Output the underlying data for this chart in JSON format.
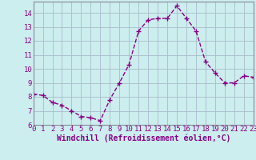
{
  "x": [
    0,
    1,
    2,
    3,
    4,
    5,
    6,
    7,
    8,
    9,
    10,
    11,
    12,
    13,
    14,
    15,
    16,
    17,
    18,
    19,
    20,
    21,
    22,
    23
  ],
  "y": [
    8.2,
    8.1,
    7.6,
    7.4,
    7.0,
    6.6,
    6.5,
    6.3,
    7.8,
    9.0,
    10.3,
    12.7,
    13.5,
    13.6,
    13.6,
    14.5,
    13.6,
    12.7,
    10.5,
    9.7,
    9.0,
    9.0,
    9.5,
    9.4
  ],
  "xlim": [
    0,
    23
  ],
  "ylim": [
    6,
    14.8
  ],
  "yticks": [
    6,
    7,
    8,
    9,
    10,
    11,
    12,
    13,
    14
  ],
  "xticks": [
    0,
    1,
    2,
    3,
    4,
    5,
    6,
    7,
    8,
    9,
    10,
    11,
    12,
    13,
    14,
    15,
    16,
    17,
    18,
    19,
    20,
    21,
    22,
    23
  ],
  "xlabel": "Windchill (Refroidissement éolien,°C)",
  "line_color": "#880088",
  "marker": "+",
  "markersize": 4,
  "linewidth": 1.0,
  "bg_color": "#cceeee",
  "grid_color": "#aabbcc",
  "tick_color": "#880088",
  "label_color": "#880088",
  "tick_fontsize": 6.5,
  "xlabel_fontsize": 7.0
}
